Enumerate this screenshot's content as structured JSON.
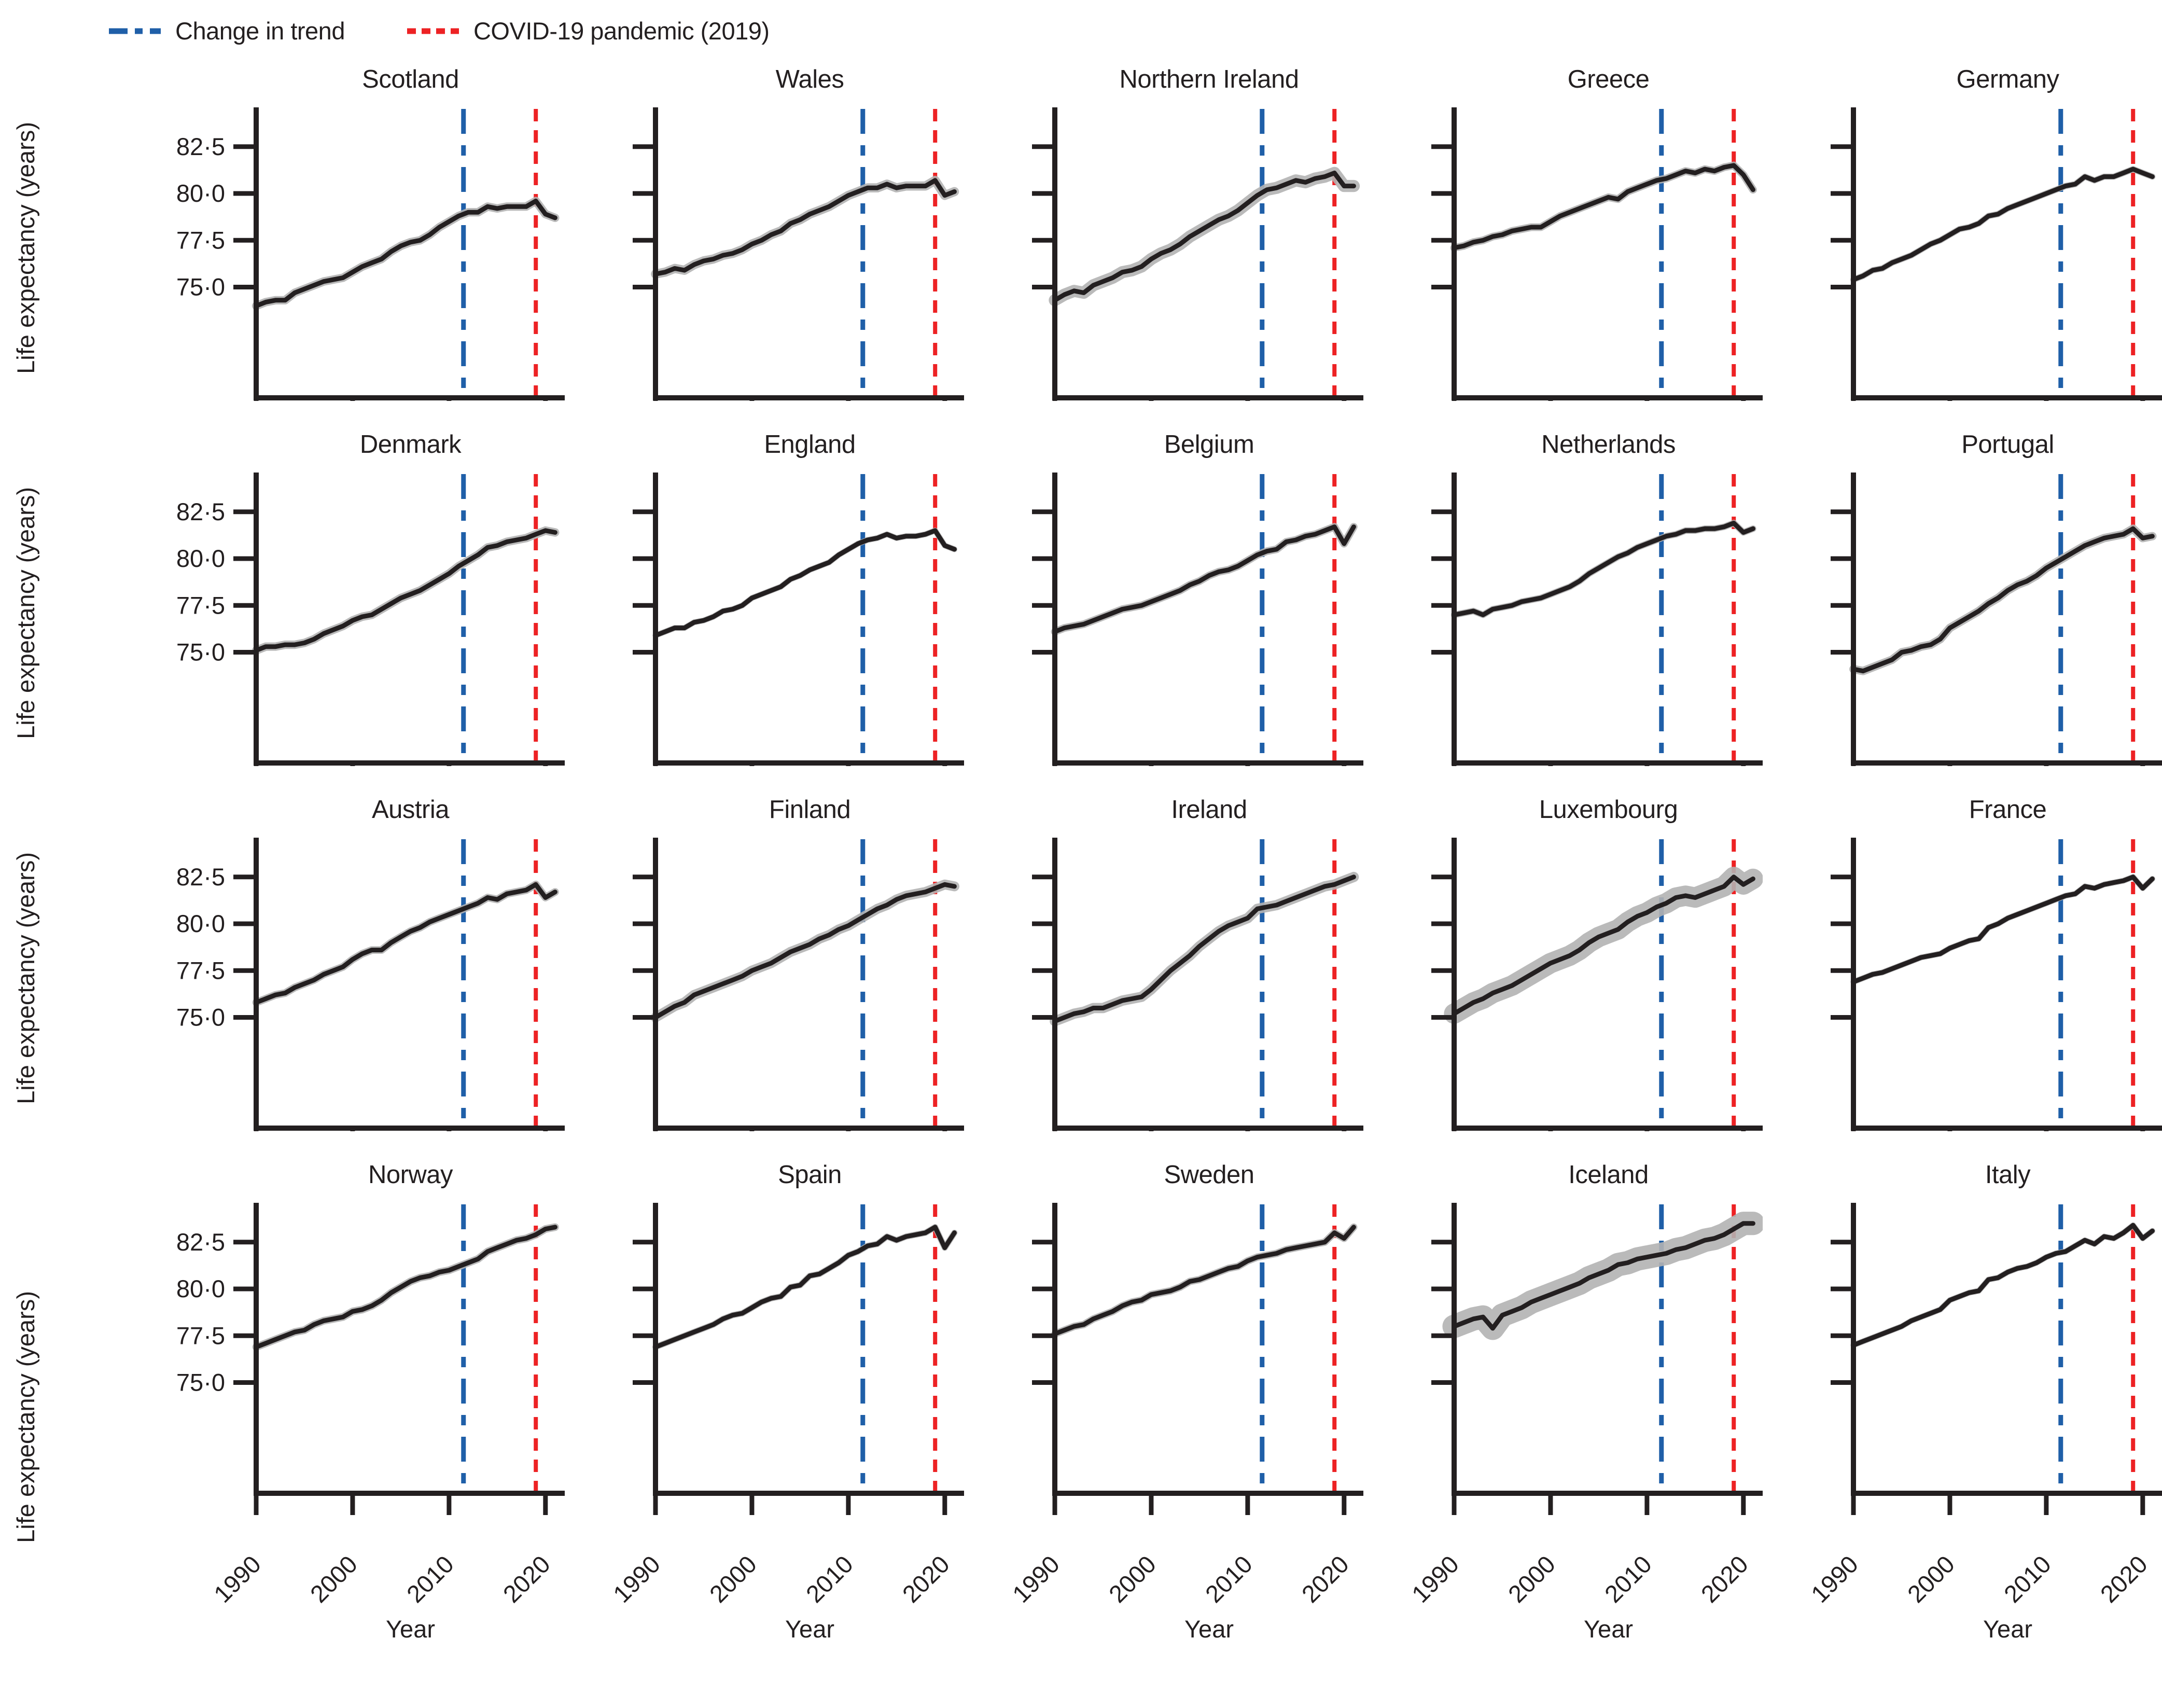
{
  "legend": {
    "items": [
      {
        "label": "Change in trend",
        "color": "#1f5fa8",
        "style": "dash-dot"
      },
      {
        "label": "COVID-19 pandemic (2019)",
        "color": "#ed2224",
        "style": "dashed"
      }
    ]
  },
  "axes": {
    "y_label": "Life expectancy (years)",
    "x_label": "Year",
    "y_ticks": [
      "82·5",
      "80·0",
      "77·5",
      "75·0"
    ],
    "y_tick_values": [
      82.5,
      80.0,
      77.5,
      75.0
    ],
    "x_ticks": [
      "1990",
      "2000",
      "2010",
      "2020"
    ],
    "x_tick_values": [
      1990,
      2000,
      2010,
      2020
    ]
  },
  "chart_data": {
    "type": "line",
    "title": "",
    "xlabel": "Year",
    "ylabel": "Life expectancy (years)",
    "x_range": [
      1990,
      2022
    ],
    "y_range": [
      69.1,
      84.6
    ],
    "grid": "off",
    "legend_position": "top-left",
    "start_year": 1990,
    "end_year": 2021,
    "line_color": "#231f20",
    "band_color": "#b3b3b3",
    "vlines": [
      {
        "name": "change-in-trend",
        "x": 2011.5,
        "color": "#1f5fa8",
        "style": "dash-dot"
      },
      {
        "name": "covid-19-pandemic",
        "x": 2019,
        "color": "#ed2224",
        "style": "dashed"
      }
    ],
    "layout_grid": [
      [
        "Scotland",
        "Wales",
        "Northern Ireland",
        "Greece",
        "Germany"
      ],
      [
        "Denmark",
        "England",
        "Belgium",
        "Netherlands",
        "Portugal"
      ],
      [
        "Austria",
        "Finland",
        "Ireland",
        "Luxembourg",
        "France"
      ],
      [
        "Norway",
        "Spain",
        "Sweden",
        "Iceland",
        "Italy"
      ]
    ],
    "series": [
      {
        "name": "Scotland",
        "ci": 0.1,
        "values": [
          74.0,
          74.2,
          74.3,
          74.3,
          74.7,
          74.9,
          75.1,
          75.3,
          75.4,
          75.5,
          75.8,
          76.1,
          76.3,
          76.5,
          76.9,
          77.2,
          77.4,
          77.5,
          77.8,
          78.2,
          78.5,
          78.8,
          79.0,
          79.0,
          79.3,
          79.2,
          79.3,
          79.3,
          79.3,
          79.6,
          78.9,
          78.7
        ]
      },
      {
        "name": "Wales",
        "ci": 0.12,
        "values": [
          75.7,
          75.8,
          76.0,
          75.9,
          76.2,
          76.4,
          76.5,
          76.7,
          76.8,
          77.0,
          77.3,
          77.5,
          77.8,
          78.0,
          78.4,
          78.6,
          78.9,
          79.1,
          79.3,
          79.6,
          79.9,
          80.1,
          80.3,
          80.3,
          80.5,
          80.3,
          80.4,
          80.4,
          80.4,
          80.7,
          79.9,
          80.1
        ]
      },
      {
        "name": "Northern Ireland",
        "ci": 0.2,
        "values": [
          74.3,
          74.6,
          74.8,
          74.7,
          75.1,
          75.3,
          75.5,
          75.8,
          75.9,
          76.1,
          76.5,
          76.8,
          77.0,
          77.3,
          77.7,
          78.0,
          78.3,
          78.6,
          78.8,
          79.1,
          79.5,
          79.9,
          80.2,
          80.3,
          80.5,
          80.7,
          80.6,
          80.8,
          80.9,
          81.1,
          80.4,
          80.4
        ]
      },
      {
        "name": "Greece",
        "ci": 0.08,
        "values": [
          77.1,
          77.2,
          77.4,
          77.5,
          77.7,
          77.8,
          78.0,
          78.1,
          78.2,
          78.2,
          78.5,
          78.8,
          79.0,
          79.2,
          79.4,
          79.6,
          79.8,
          79.7,
          80.1,
          80.3,
          80.5,
          80.7,
          80.8,
          81.0,
          81.2,
          81.1,
          81.3,
          81.2,
          81.4,
          81.5,
          81.0,
          80.2
        ]
      },
      {
        "name": "Germany",
        "ci": 0.04,
        "values": [
          75.4,
          75.6,
          75.9,
          76.0,
          76.3,
          76.5,
          76.7,
          77.0,
          77.3,
          77.5,
          77.8,
          78.1,
          78.2,
          78.4,
          78.8,
          78.9,
          79.2,
          79.4,
          79.6,
          79.8,
          80.0,
          80.2,
          80.4,
          80.5,
          80.9,
          80.7,
          80.9,
          80.9,
          81.1,
          81.3,
          81.1,
          80.9
        ]
      },
      {
        "name": "Denmark",
        "ci": 0.1,
        "values": [
          75.1,
          75.3,
          75.3,
          75.4,
          75.4,
          75.5,
          75.7,
          76.0,
          76.2,
          76.4,
          76.7,
          76.9,
          77.0,
          77.3,
          77.6,
          77.9,
          78.1,
          78.3,
          78.6,
          78.9,
          79.2,
          79.6,
          79.9,
          80.2,
          80.6,
          80.7,
          80.9,
          81.0,
          81.1,
          81.3,
          81.5,
          81.4
        ]
      },
      {
        "name": "England",
        "ci": 0.03,
        "values": [
          75.9,
          76.1,
          76.3,
          76.3,
          76.6,
          76.7,
          76.9,
          77.2,
          77.3,
          77.5,
          77.9,
          78.1,
          78.3,
          78.5,
          78.9,
          79.1,
          79.4,
          79.6,
          79.8,
          80.2,
          80.5,
          80.8,
          81.0,
          81.1,
          81.3,
          81.1,
          81.2,
          81.2,
          81.3,
          81.5,
          80.7,
          80.5
        ]
      },
      {
        "name": "Belgium",
        "ci": 0.08,
        "values": [
          76.1,
          76.3,
          76.4,
          76.5,
          76.7,
          76.9,
          77.1,
          77.3,
          77.4,
          77.5,
          77.7,
          77.9,
          78.1,
          78.3,
          78.6,
          78.8,
          79.1,
          79.3,
          79.4,
          79.6,
          79.9,
          80.2,
          80.4,
          80.5,
          80.9,
          81.0,
          81.2,
          81.3,
          81.5,
          81.7,
          80.8,
          81.7
        ]
      },
      {
        "name": "Netherlands",
        "ci": 0.05,
        "values": [
          77.0,
          77.1,
          77.2,
          77.0,
          77.3,
          77.4,
          77.5,
          77.7,
          77.8,
          77.9,
          78.1,
          78.3,
          78.5,
          78.8,
          79.2,
          79.5,
          79.8,
          80.1,
          80.3,
          80.6,
          80.8,
          81.0,
          81.2,
          81.3,
          81.5,
          81.5,
          81.6,
          81.6,
          81.7,
          81.9,
          81.4,
          81.6
        ]
      },
      {
        "name": "Portugal",
        "ci": 0.1,
        "values": [
          74.1,
          74.0,
          74.2,
          74.4,
          74.6,
          75.0,
          75.1,
          75.3,
          75.4,
          75.7,
          76.3,
          76.6,
          76.9,
          77.2,
          77.6,
          77.9,
          78.3,
          78.6,
          78.8,
          79.1,
          79.5,
          79.8,
          80.1,
          80.4,
          80.7,
          80.9,
          81.1,
          81.2,
          81.3,
          81.6,
          81.1,
          81.2
        ]
      },
      {
        "name": "Austria",
        "ci": 0.08,
        "values": [
          75.8,
          76.0,
          76.2,
          76.3,
          76.6,
          76.8,
          77.0,
          77.3,
          77.5,
          77.7,
          78.1,
          78.4,
          78.6,
          78.6,
          79.0,
          79.3,
          79.6,
          79.8,
          80.1,
          80.3,
          80.5,
          80.7,
          80.9,
          81.1,
          81.4,
          81.3,
          81.6,
          81.7,
          81.8,
          82.1,
          81.4,
          81.7
        ]
      },
      {
        "name": "Finland",
        "ci": 0.14,
        "values": [
          75.0,
          75.3,
          75.6,
          75.8,
          76.2,
          76.4,
          76.6,
          76.8,
          77.0,
          77.2,
          77.5,
          77.7,
          77.9,
          78.2,
          78.5,
          78.7,
          78.9,
          79.2,
          79.4,
          79.7,
          79.9,
          80.2,
          80.5,
          80.8,
          81.0,
          81.3,
          81.5,
          81.6,
          81.7,
          81.9,
          82.1,
          82.0
        ]
      },
      {
        "name": "Ireland",
        "ci": 0.15,
        "values": [
          74.8,
          75.0,
          75.2,
          75.3,
          75.5,
          75.5,
          75.7,
          75.9,
          76.0,
          76.1,
          76.5,
          77.0,
          77.5,
          77.9,
          78.3,
          78.8,
          79.2,
          79.6,
          79.9,
          80.1,
          80.3,
          80.8,
          80.9,
          81.0,
          81.2,
          81.4,
          81.6,
          81.8,
          82.0,
          82.1,
          82.3,
          82.5
        ]
      },
      {
        "name": "Luxembourg",
        "ci": 0.42,
        "values": [
          75.2,
          75.5,
          75.8,
          76.0,
          76.3,
          76.5,
          76.7,
          77.0,
          77.3,
          77.6,
          77.9,
          78.1,
          78.3,
          78.6,
          79.0,
          79.3,
          79.5,
          79.7,
          80.1,
          80.4,
          80.6,
          80.9,
          81.1,
          81.4,
          81.5,
          81.4,
          81.6,
          81.8,
          82.0,
          82.5,
          82.1,
          82.4
        ]
      },
      {
        "name": "France",
        "ci": 0.03,
        "values": [
          76.9,
          77.1,
          77.3,
          77.4,
          77.6,
          77.8,
          78.0,
          78.2,
          78.3,
          78.4,
          78.7,
          78.9,
          79.1,
          79.2,
          79.8,
          80.0,
          80.3,
          80.5,
          80.7,
          80.9,
          81.1,
          81.3,
          81.5,
          81.6,
          82.0,
          81.9,
          82.1,
          82.2,
          82.3,
          82.5,
          81.9,
          82.4
        ]
      },
      {
        "name": "Norway",
        "ci": 0.08,
        "values": [
          76.9,
          77.1,
          77.3,
          77.5,
          77.7,
          77.8,
          78.1,
          78.3,
          78.4,
          78.5,
          78.8,
          78.9,
          79.1,
          79.4,
          79.8,
          80.1,
          80.4,
          80.6,
          80.7,
          80.9,
          81.0,
          81.2,
          81.4,
          81.6,
          82.0,
          82.2,
          82.4,
          82.6,
          82.7,
          82.9,
          83.2,
          83.3
        ]
      },
      {
        "name": "Spain",
        "ci": 0.04,
        "values": [
          76.9,
          77.1,
          77.3,
          77.5,
          77.7,
          77.9,
          78.1,
          78.4,
          78.6,
          78.7,
          79.0,
          79.3,
          79.5,
          79.6,
          80.1,
          80.2,
          80.7,
          80.8,
          81.1,
          81.4,
          81.8,
          82.0,
          82.3,
          82.4,
          82.8,
          82.6,
          82.8,
          82.9,
          83.0,
          83.3,
          82.2,
          83.0
        ]
      },
      {
        "name": "Sweden",
        "ci": 0.07,
        "values": [
          77.6,
          77.8,
          78.0,
          78.1,
          78.4,
          78.6,
          78.8,
          79.1,
          79.3,
          79.4,
          79.7,
          79.8,
          79.9,
          80.1,
          80.4,
          80.5,
          80.7,
          80.9,
          81.1,
          81.2,
          81.5,
          81.7,
          81.8,
          81.9,
          82.1,
          82.2,
          82.3,
          82.4,
          82.5,
          83.0,
          82.7,
          83.3
        ]
      },
      {
        "name": "Iceland",
        "ci": 0.5,
        "values": [
          78.0,
          78.2,
          78.4,
          78.5,
          77.9,
          78.6,
          78.8,
          79.0,
          79.3,
          79.5,
          79.7,
          79.9,
          80.1,
          80.3,
          80.6,
          80.8,
          81.0,
          81.3,
          81.4,
          81.6,
          81.7,
          81.8,
          81.9,
          82.1,
          82.2,
          82.4,
          82.6,
          82.7,
          82.9,
          83.2,
          83.5,
          83.5
        ]
      },
      {
        "name": "Italy",
        "ci": 0.03,
        "values": [
          77.0,
          77.2,
          77.4,
          77.6,
          77.8,
          78.0,
          78.3,
          78.5,
          78.7,
          78.9,
          79.4,
          79.6,
          79.8,
          79.9,
          80.5,
          80.6,
          80.9,
          81.1,
          81.2,
          81.4,
          81.7,
          81.9,
          82.0,
          82.3,
          82.6,
          82.4,
          82.8,
          82.7,
          83.0,
          83.4,
          82.7,
          83.1
        ]
      }
    ]
  }
}
